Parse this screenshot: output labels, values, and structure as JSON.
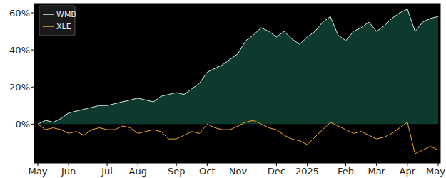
{
  "chart_data": {
    "type": "line",
    "categories": [
      "May",
      null,
      null,
      null,
      "Jun",
      null,
      null,
      null,
      null,
      "Jul",
      null,
      null,
      null,
      "Aug",
      null,
      null,
      null,
      null,
      "Sep",
      null,
      null,
      null,
      "Oct",
      null,
      null,
      null,
      "Nov",
      null,
      null,
      null,
      null,
      "Dec",
      null,
      null,
      null,
      "2025",
      null,
      null,
      null,
      null,
      "Feb",
      null,
      null,
      null,
      "Mar",
      null,
      null,
      null,
      "Apr",
      null,
      null,
      null,
      "May"
    ],
    "series": [
      {
        "name": "WMB",
        "type": "area",
        "color": "#d8ece2",
        "values": [
          0,
          2,
          1,
          3,
          6,
          7,
          8,
          9,
          10,
          10,
          11,
          12,
          13,
          14,
          13,
          12,
          15,
          16,
          17,
          16,
          19,
          22,
          28,
          30,
          32,
          35,
          38,
          45,
          48,
          52,
          50,
          47,
          50,
          46,
          43,
          47,
          50,
          55,
          58,
          48,
          45,
          50,
          52,
          55,
          50,
          53,
          57,
          60,
          62,
          50,
          55,
          57,
          58
        ]
      },
      {
        "name": "XLE",
        "type": "line",
        "color": "#f5a623",
        "values": [
          0,
          -3,
          -2,
          -3,
          -5,
          -4,
          -6,
          -3,
          -2,
          -3,
          -3,
          -1,
          -2,
          -5,
          -4,
          -3,
          -4,
          -8,
          -8,
          -6,
          -4,
          -5,
          0,
          -2,
          -3,
          -3,
          -1,
          1,
          2,
          0,
          -2,
          -3,
          -6,
          -8,
          -9,
          -11,
          -7,
          -3,
          1,
          -1,
          -3,
          -5,
          -4,
          -6,
          -8,
          -7,
          -5,
          -2,
          1,
          -16,
          -14,
          -12,
          -14
        ]
      }
    ],
    "ylim": [
      -21,
      65
    ],
    "yticks": [
      {
        "value": 0,
        "label": "0%"
      },
      {
        "value": 20,
        "label": "20%"
      },
      {
        "value": 40,
        "label": "40%"
      },
      {
        "value": 60,
        "label": "60%"
      }
    ],
    "grid": false,
    "legend": "upper left"
  }
}
